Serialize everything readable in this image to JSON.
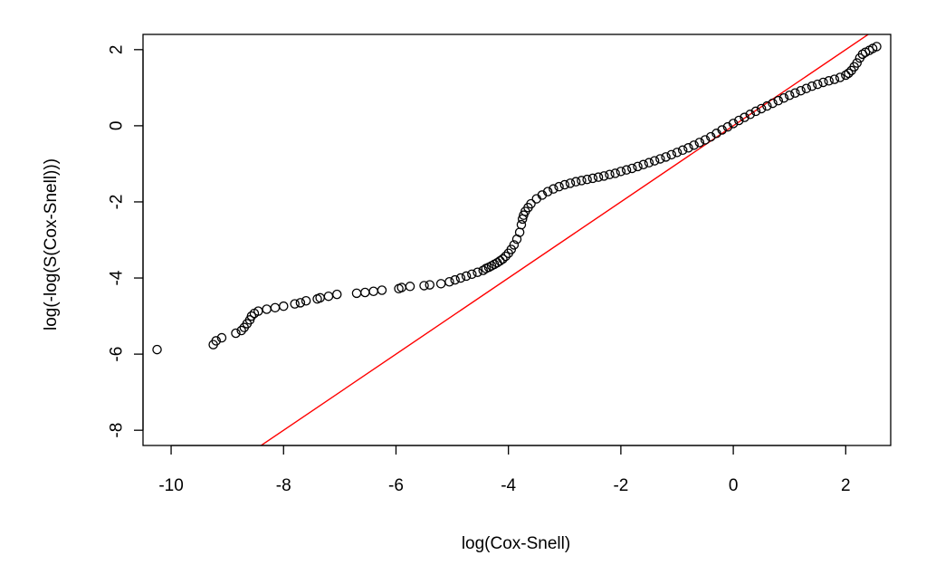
{
  "chart_data": {
    "type": "scatter",
    "title": "",
    "xlabel": "log(Cox-Snell)",
    "ylabel": "log(-log(S(Cox-Snell)))",
    "xlim": [
      -10.5,
      2.8
    ],
    "ylim": [
      -8.4,
      2.4
    ],
    "xticks": [
      -10,
      -8,
      -6,
      -4,
      -2,
      0,
      2
    ],
    "yticks": [
      -8,
      -6,
      -4,
      -2,
      0,
      2
    ],
    "xtick_labels": [
      "-10",
      "-8",
      "-6",
      "-4",
      "-2",
      "0",
      "2"
    ],
    "ytick_labels": [
      "-8",
      "-6",
      "-4",
      "-2",
      "0",
      "2"
    ],
    "grid": false,
    "point_color": "#000000",
    "reference_line": {
      "intercept": 0,
      "slope": 1,
      "color": "#ff0000"
    },
    "series": [
      {
        "marker": "open-circle",
        "points": [
          [
            -10.25,
            -5.88
          ],
          [
            -9.25,
            -5.75
          ],
          [
            -9.2,
            -5.65
          ],
          [
            -9.1,
            -5.57
          ],
          [
            -8.85,
            -5.45
          ],
          [
            -8.75,
            -5.38
          ],
          [
            -8.7,
            -5.3
          ],
          [
            -8.65,
            -5.2
          ],
          [
            -8.6,
            -5.1
          ],
          [
            -8.57,
            -5.0
          ],
          [
            -8.52,
            -4.93
          ],
          [
            -8.45,
            -4.87
          ],
          [
            -8.3,
            -4.82
          ],
          [
            -8.15,
            -4.78
          ],
          [
            -8.0,
            -4.74
          ],
          [
            -7.8,
            -4.68
          ],
          [
            -7.7,
            -4.65
          ],
          [
            -7.6,
            -4.6
          ],
          [
            -7.4,
            -4.55
          ],
          [
            -7.35,
            -4.52
          ],
          [
            -7.2,
            -4.48
          ],
          [
            -7.05,
            -4.43
          ],
          [
            -6.7,
            -4.4
          ],
          [
            -6.55,
            -4.38
          ],
          [
            -6.4,
            -4.35
          ],
          [
            -6.25,
            -4.32
          ],
          [
            -5.95,
            -4.28
          ],
          [
            -5.9,
            -4.25
          ],
          [
            -5.75,
            -4.22
          ],
          [
            -5.5,
            -4.2
          ],
          [
            -5.4,
            -4.18
          ],
          [
            -5.2,
            -4.15
          ],
          [
            -5.05,
            -4.1
          ],
          [
            -4.95,
            -4.05
          ],
          [
            -4.85,
            -4.0
          ],
          [
            -4.75,
            -3.95
          ],
          [
            -4.65,
            -3.9
          ],
          [
            -4.55,
            -3.85
          ],
          [
            -4.45,
            -3.8
          ],
          [
            -4.4,
            -3.75
          ],
          [
            -4.35,
            -3.72
          ],
          [
            -4.3,
            -3.68
          ],
          [
            -4.25,
            -3.64
          ],
          [
            -4.2,
            -3.6
          ],
          [
            -4.15,
            -3.55
          ],
          [
            -4.1,
            -3.5
          ],
          [
            -4.05,
            -3.43
          ],
          [
            -4.0,
            -3.35
          ],
          [
            -3.95,
            -3.25
          ],
          [
            -3.9,
            -3.13
          ],
          [
            -3.85,
            -2.98
          ],
          [
            -3.8,
            -2.8
          ],
          [
            -3.77,
            -2.6
          ],
          [
            -3.75,
            -2.45
          ],
          [
            -3.73,
            -2.35
          ],
          [
            -3.7,
            -2.25
          ],
          [
            -3.65,
            -2.15
          ],
          [
            -3.6,
            -2.05
          ],
          [
            -3.5,
            -1.92
          ],
          [
            -3.4,
            -1.82
          ],
          [
            -3.3,
            -1.73
          ],
          [
            -3.2,
            -1.66
          ],
          [
            -3.1,
            -1.6
          ],
          [
            -3.0,
            -1.55
          ],
          [
            -2.9,
            -1.51
          ],
          [
            -2.8,
            -1.47
          ],
          [
            -2.7,
            -1.44
          ],
          [
            -2.6,
            -1.41
          ],
          [
            -2.5,
            -1.38
          ],
          [
            -2.4,
            -1.35
          ],
          [
            -2.3,
            -1.32
          ],
          [
            -2.2,
            -1.28
          ],
          [
            -2.1,
            -1.25
          ],
          [
            -2.0,
            -1.2
          ],
          [
            -1.9,
            -1.16
          ],
          [
            -1.8,
            -1.12
          ],
          [
            -1.7,
            -1.07
          ],
          [
            -1.6,
            -1.02
          ],
          [
            -1.5,
            -0.97
          ],
          [
            -1.4,
            -0.92
          ],
          [
            -1.3,
            -0.87
          ],
          [
            -1.2,
            -0.82
          ],
          [
            -1.1,
            -0.76
          ],
          [
            -1.0,
            -0.7
          ],
          [
            -0.9,
            -0.64
          ],
          [
            -0.8,
            -0.58
          ],
          [
            -0.7,
            -0.51
          ],
          [
            -0.6,
            -0.44
          ],
          [
            -0.5,
            -0.37
          ],
          [
            -0.4,
            -0.29
          ],
          [
            -0.3,
            -0.2
          ],
          [
            -0.2,
            -0.11
          ],
          [
            -0.1,
            -0.03
          ],
          [
            0.0,
            0.06
          ],
          [
            0.1,
            0.14
          ],
          [
            0.2,
            0.22
          ],
          [
            0.3,
            0.3
          ],
          [
            0.4,
            0.38
          ],
          [
            0.5,
            0.45
          ],
          [
            0.6,
            0.52
          ],
          [
            0.7,
            0.59
          ],
          [
            0.8,
            0.66
          ],
          [
            0.9,
            0.73
          ],
          [
            1.0,
            0.8
          ],
          [
            1.1,
            0.86
          ],
          [
            1.2,
            0.92
          ],
          [
            1.3,
            0.98
          ],
          [
            1.4,
            1.04
          ],
          [
            1.5,
            1.09
          ],
          [
            1.6,
            1.14
          ],
          [
            1.7,
            1.18
          ],
          [
            1.8,
            1.22
          ],
          [
            1.9,
            1.27
          ],
          [
            2.0,
            1.33
          ],
          [
            2.05,
            1.38
          ],
          [
            2.1,
            1.45
          ],
          [
            2.15,
            1.55
          ],
          [
            2.2,
            1.65
          ],
          [
            2.25,
            1.78
          ],
          [
            2.3,
            1.88
          ],
          [
            2.35,
            1.93
          ],
          [
            2.42,
            1.98
          ],
          [
            2.48,
            2.03
          ],
          [
            2.55,
            2.08
          ]
        ]
      }
    ]
  }
}
